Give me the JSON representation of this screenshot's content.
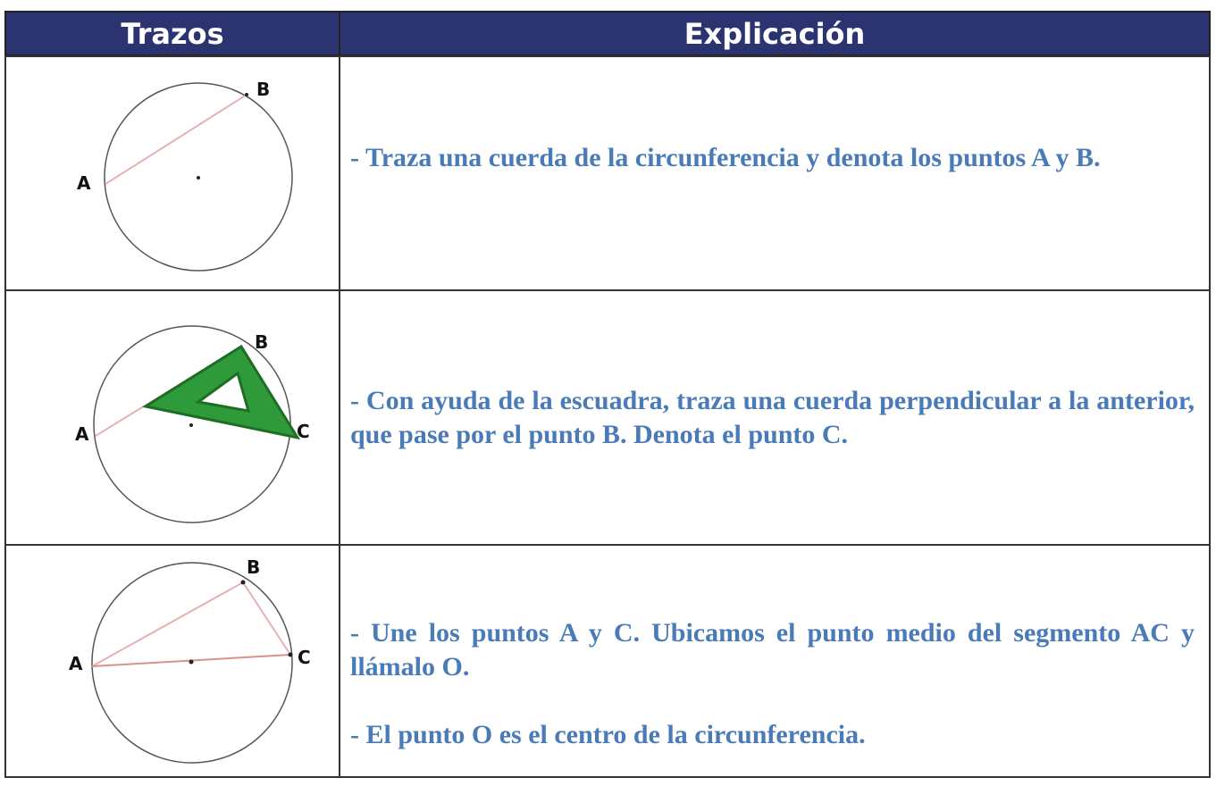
{
  "table": {
    "headers": [
      "Trazos",
      "Explicación"
    ],
    "rows": [
      {
        "labels": [
          "A",
          "B"
        ],
        "text": [
          "- Traza una cuerda de la circunferencia y denota los puntos A y B."
        ]
      },
      {
        "labels": [
          "A",
          "B",
          "C"
        ],
        "text": [
          "- Con ayuda de la escuadra, traza una cuerda perpendicular a la anterior, que pase por el punto B. Denota el punto C."
        ]
      },
      {
        "labels": [
          "A",
          "B",
          "C"
        ],
        "text": [
          "- Une los puntos A y C. Ubicamos el punto medio del segmento AC y llámalo O.",
          "- El punto O es el centro de la circunferencia."
        ]
      }
    ]
  }
}
